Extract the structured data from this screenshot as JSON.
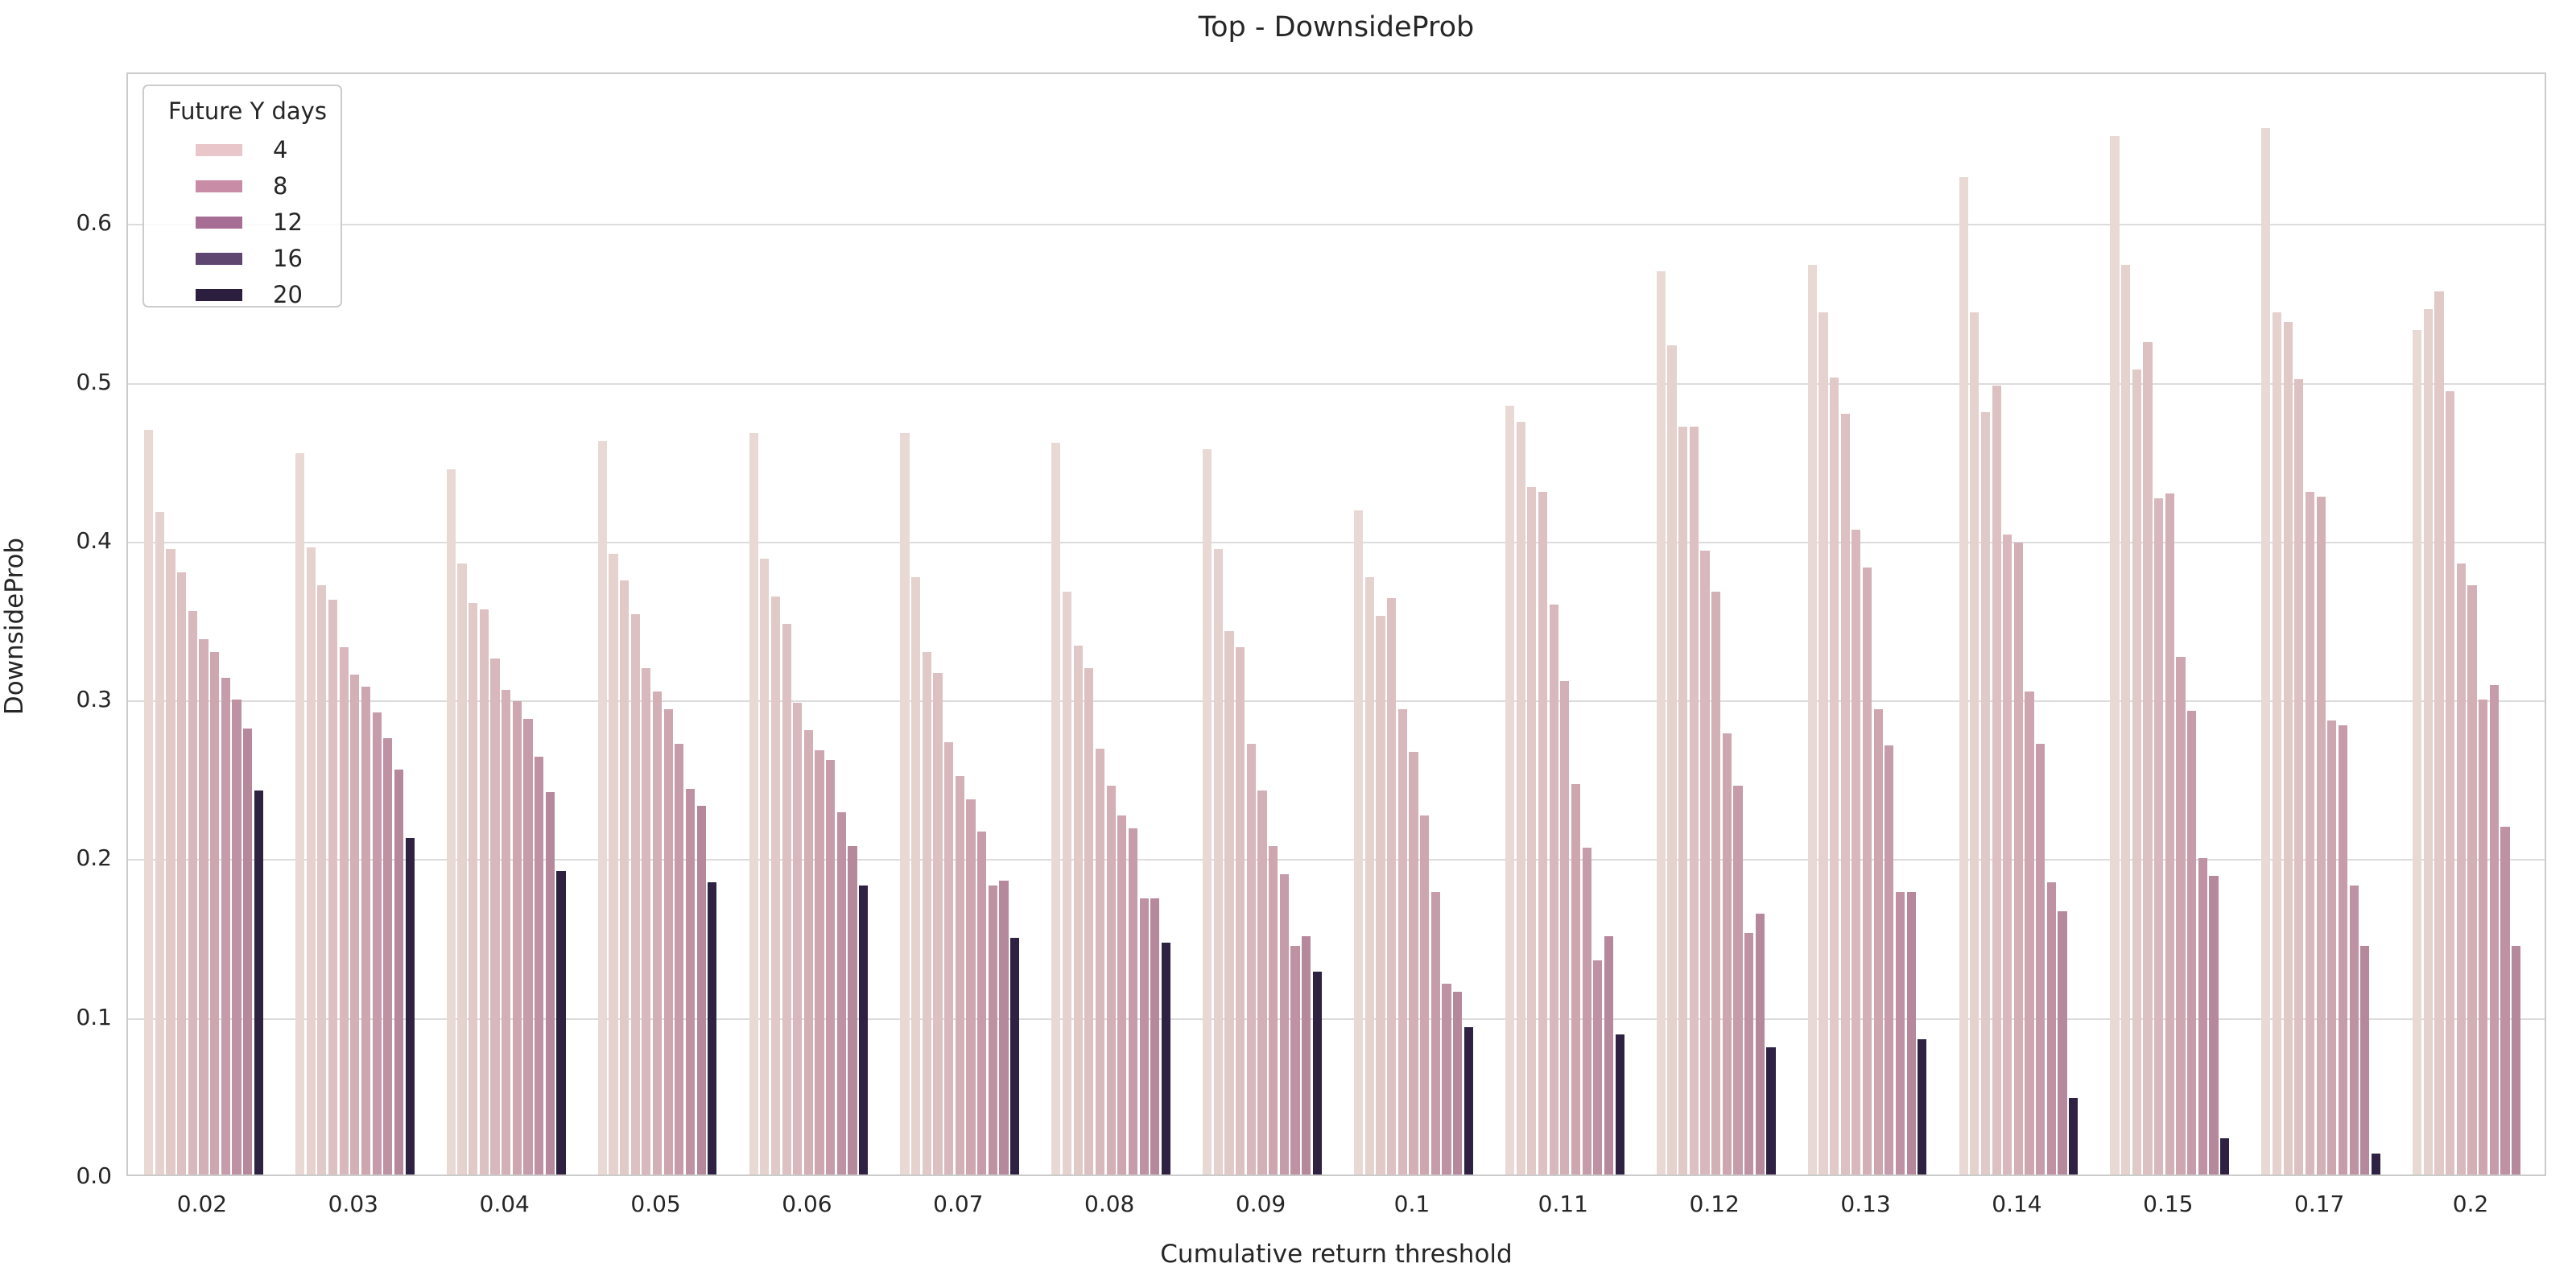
{
  "title": "Top - DownsideProb",
  "axes": {
    "xlabel": "Cumulative return threshold",
    "ylabel": "DownsideProb",
    "yticks": [
      "0.0",
      "0.1",
      "0.2",
      "0.3",
      "0.4",
      "0.5",
      "0.6"
    ]
  },
  "legend": {
    "title": "Future Y days",
    "entries": [
      {
        "label": "4",
        "color": "#e8c6ca"
      },
      {
        "label": "8",
        "color": "#c98ca7"
      },
      {
        "label": "12",
        "color": "#a76e95"
      },
      {
        "label": "16",
        "color": "#5f4670"
      },
      {
        "label": "20",
        "color": "#2b1e3e"
      }
    ]
  },
  "colors": {
    "text": "#262626",
    "gridline": "#dcdcdc",
    "spine": "#cbcbcb",
    "background": "#ffffff"
  },
  "chart_data": {
    "type": "bar",
    "title": "Top - DownsideProb",
    "xlabel": "Cumulative return threshold",
    "ylabel": "DownsideProb",
    "ylim": [
      0,
      0.695
    ],
    "grid": true,
    "legend_position": "upper left",
    "legend_title": "Future Y days",
    "legend_labels": [
      "4",
      "8",
      "12",
      "16",
      "20"
    ],
    "bars_per_group": 11,
    "bar_colors": [
      "#e9d9d4",
      "#e5d1ce",
      "#e1c9c8",
      "#ddc1c2",
      "#d8b8bc",
      "#d3afb6",
      "#cda6b0",
      "#c69caa",
      "#bf92a3",
      "#b6889c",
      "#2e2142"
    ],
    "categories": [
      "0.02",
      "0.03",
      "0.04",
      "0.05",
      "0.06",
      "0.07",
      "0.08",
      "0.09",
      "0.1",
      "0.11",
      "0.12",
      "0.13",
      "0.14",
      "0.15",
      "0.17",
      "0.2"
    ],
    "groups": [
      [
        0.469,
        0.417,
        0.394,
        0.379,
        0.355,
        0.337,
        0.329,
        0.313,
        0.299,
        0.281,
        0.242
      ],
      [
        0.454,
        0.395,
        0.371,
        0.362,
        0.332,
        0.315,
        0.307,
        0.291,
        0.275,
        0.255,
        0.212
      ],
      [
        0.444,
        0.385,
        0.36,
        0.356,
        0.325,
        0.305,
        0.298,
        0.287,
        0.263,
        0.241,
        0.191
      ],
      [
        0.462,
        0.391,
        0.374,
        0.353,
        0.319,
        0.304,
        0.293,
        0.271,
        0.243,
        0.232,
        0.184
      ],
      [
        0.467,
        0.388,
        0.364,
        0.347,
        0.297,
        0.28,
        0.267,
        0.261,
        0.228,
        0.207,
        0.182
      ],
      [
        0.467,
        0.376,
        0.329,
        0.316,
        0.272,
        0.251,
        0.236,
        0.216,
        0.182,
        0.185,
        0.149
      ],
      [
        0.461,
        0.367,
        0.333,
        0.319,
        0.268,
        0.245,
        0.226,
        0.218,
        0.174,
        0.174,
        0.146
      ],
      [
        0.457,
        0.394,
        0.342,
        0.332,
        0.271,
        0.242,
        0.207,
        0.189,
        0.144,
        0.15,
        0.128
      ],
      [
        0.418,
        0.376,
        0.352,
        0.363,
        0.293,
        0.266,
        0.226,
        0.178,
        0.12,
        0.115,
        0.093
      ],
      [
        0.484,
        0.474,
        0.433,
        0.43,
        0.359,
        0.311,
        0.246,
        0.206,
        0.135,
        0.15,
        0.088
      ],
      [
        0.569,
        0.522,
        0.471,
        0.471,
        0.393,
        0.367,
        0.278,
        0.245,
        0.152,
        0.164,
        0.08
      ],
      [
        0.573,
        0.543,
        0.502,
        0.479,
        0.406,
        0.382,
        0.293,
        0.27,
        0.178,
        0.178,
        0.085
      ],
      [
        0.628,
        0.543,
        0.48,
        0.497,
        0.403,
        0.398,
        0.304,
        0.271,
        0.184,
        0.166,
        0.048
      ],
      [
        0.654,
        0.573,
        0.507,
        0.524,
        0.426,
        0.429,
        0.326,
        0.292,
        0.199,
        0.188,
        0.023
      ],
      [
        0.659,
        0.543,
        0.537,
        0.501,
        0.43,
        0.427,
        0.286,
        0.283,
        0.182,
        0.144,
        0.013
      ],
      [
        0.532,
        0.545,
        0.556,
        0.493,
        0.385,
        0.371,
        0.299,
        0.308,
        0.219,
        0.144,
        0.0
      ]
    ]
  }
}
